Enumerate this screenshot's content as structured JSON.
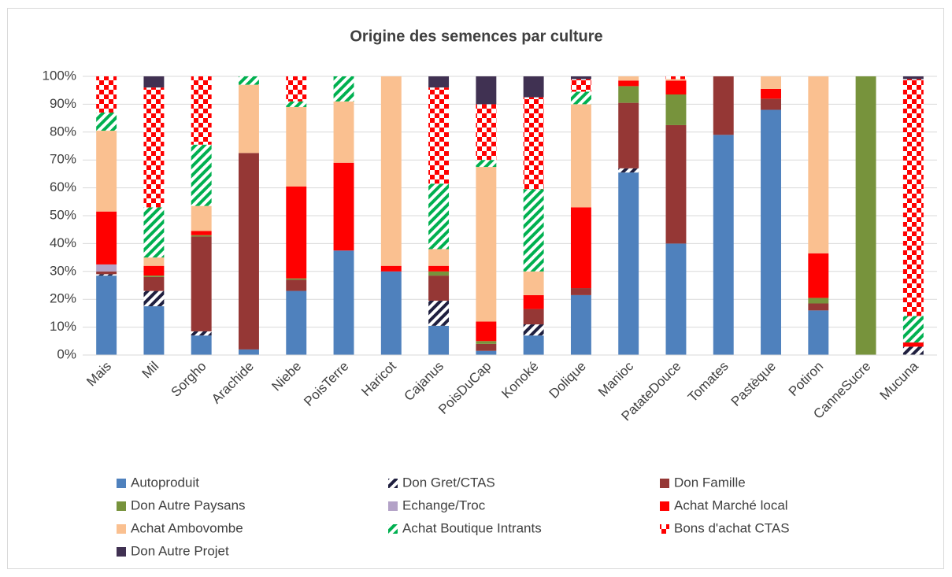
{
  "chart_data": {
    "type": "stacked_bar",
    "title": "Origine des semences par culture",
    "categories": [
      "Mais",
      "Mil",
      "Sorgho",
      "Arachide",
      "Niebe",
      "PoisTerre",
      "Haricot",
      "Cajanus",
      "PoisDuCap",
      "Konoké",
      "Dolique",
      "Manioc",
      "PatateDouce",
      "Tomates",
      "Pastèque",
      "Potiron",
      "CanneSucre",
      "Mucuna"
    ],
    "series": [
      {
        "name": "Autoproduit",
        "color": "#4f81bd",
        "values": [
          28.5,
          17.5,
          7,
          2,
          23,
          37.5,
          30,
          10.5,
          1.5,
          7,
          21.5,
          65.5,
          40,
          79,
          88,
          16,
          0,
          0
        ]
      },
      {
        "name": "Don Gret/CTAS",
        "color": "#1f1f3f",
        "pattern": "hatch",
        "values": [
          0.5,
          5.5,
          1.5,
          0,
          0,
          0,
          0,
          9,
          0,
          4,
          0,
          1.5,
          0,
          0,
          0,
          0,
          0,
          3
        ]
      },
      {
        "name": "Don Famille",
        "color": "#953735",
        "values": [
          1,
          5,
          34,
          70.5,
          4,
          0,
          0,
          9,
          2.5,
          5.5,
          2.5,
          23.5,
          42.5,
          21,
          4,
          2.5,
          0,
          0
        ]
      },
      {
        "name": "Don Autre Paysans",
        "color": "#77933c",
        "values": [
          0,
          0.5,
          0.5,
          0,
          0.5,
          0,
          0,
          1.5,
          1,
          0,
          0,
          6,
          11,
          0,
          0,
          2,
          100,
          0
        ]
      },
      {
        "name": "Echange/Troc",
        "color": "#b3a2c7",
        "values": [
          2.5,
          0,
          0,
          0,
          0,
          0,
          0,
          0,
          0,
          0,
          0,
          0,
          0,
          0,
          0,
          0,
          0,
          0
        ]
      },
      {
        "name": "Achat Marché local",
        "color": "#ff0000",
        "values": [
          19,
          3.5,
          1.5,
          0,
          33,
          31.5,
          2,
          2,
          7,
          5,
          29,
          2,
          5,
          0,
          3.5,
          16,
          0,
          1.5
        ]
      },
      {
        "name": "Achat Ambovombe",
        "color": "#fac090",
        "values": [
          29,
          3,
          9,
          24.5,
          28.5,
          22,
          68,
          6,
          55.5,
          8.5,
          37,
          1.5,
          0.5,
          0,
          4.5,
          63.5,
          0,
          0
        ]
      },
      {
        "name": "Achat Boutique Intrants",
        "color": "#00b050",
        "pattern": "hatch",
        "values": [
          6.5,
          18,
          22,
          3,
          2,
          9,
          0,
          23.5,
          2.5,
          29.5,
          4.5,
          0,
          0,
          0,
          0,
          0,
          0,
          9.5
        ]
      },
      {
        "name": "Bons d'achat CTAS",
        "color": "#ff0000",
        "pattern": "checker",
        "values": [
          13,
          43,
          24.5,
          0,
          9,
          0,
          0,
          34.5,
          20,
          33,
          4.5,
          0,
          1,
          0,
          0,
          0,
          0,
          85
        ]
      },
      {
        "name": "Don Autre Projet",
        "color": "#403152",
        "values": [
          0,
          4,
          0,
          0,
          0,
          0,
          0,
          4,
          10,
          7.5,
          1,
          0,
          0,
          0,
          0,
          0,
          0,
          1
        ]
      }
    ],
    "ylim": [
      0,
      100
    ],
    "yticks": [
      {
        "value": 0,
        "label": "0%"
      },
      {
        "value": 10,
        "label": "10%"
      },
      {
        "value": 20,
        "label": "20%"
      },
      {
        "value": 30,
        "label": "30%"
      },
      {
        "value": 40,
        "label": "40%"
      },
      {
        "value": 50,
        "label": "50%"
      },
      {
        "value": 60,
        "label": "60%"
      },
      {
        "value": 70,
        "label": "70%"
      },
      {
        "value": 80,
        "label": "80%"
      },
      {
        "value": 90,
        "label": "90%"
      },
      {
        "value": 100,
        "label": "100%"
      }
    ],
    "grid": true,
    "legend": "bottom"
  }
}
